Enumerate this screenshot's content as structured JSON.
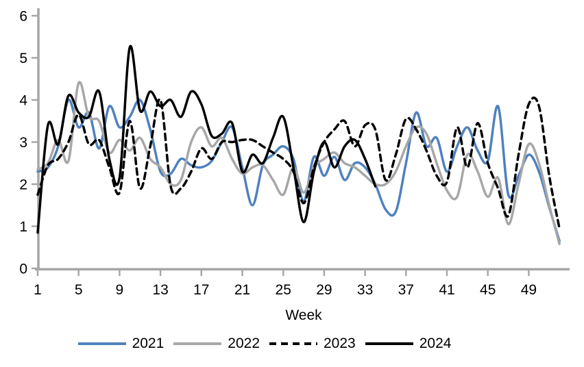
{
  "axis_color": "#a6a6a6",
  "chart_data": {
    "type": "line",
    "title": "",
    "xlabel": "Week",
    "ylabel": "",
    "x_start": 1,
    "x_step": 1,
    "xlim": [
      1,
      52
    ],
    "ylim": [
      0,
      6
    ],
    "x_ticks": [
      1,
      5,
      9,
      13,
      17,
      21,
      25,
      29,
      33,
      37,
      41,
      45,
      49
    ],
    "y_ticks": [
      0,
      1,
      2,
      3,
      4,
      5,
      6
    ],
    "grid": false,
    "legend_position": "bottom",
    "series": [
      {
        "name": "2021",
        "color": "#4f81bd",
        "style": "solid",
        "values": [
          2.3,
          2.4,
          2.9,
          4.0,
          3.35,
          3.7,
          2.85,
          3.85,
          3.35,
          3.6,
          4.0,
          3.3,
          2.3,
          2.25,
          2.6,
          2.45,
          2.4,
          2.55,
          3.0,
          3.35,
          2.4,
          1.5,
          2.45,
          2.7,
          2.9,
          2.6,
          1.6,
          2.65,
          2.2,
          2.65,
          2.1,
          2.5,
          2.4,
          2.0,
          1.4,
          1.35,
          2.5,
          3.7,
          2.9,
          3.1,
          2.3,
          2.9,
          3.35,
          2.8,
          2.55,
          3.85,
          1.75,
          2.2,
          2.7,
          2.3,
          1.45,
          0.65
        ]
      },
      {
        "name": "2022",
        "color": "#a7a7a7",
        "style": "solid",
        "values": [
          2.35,
          2.5,
          3.05,
          2.55,
          4.4,
          3.6,
          3.5,
          2.75,
          3.05,
          2.8,
          3.1,
          2.6,
          2.4,
          2.0,
          2.1,
          3.0,
          3.35,
          2.9,
          3.1,
          2.6,
          2.25,
          2.4,
          2.45,
          2.1,
          1.75,
          2.4,
          1.8,
          2.4,
          2.6,
          2.75,
          2.5,
          2.4,
          2.2,
          2.0,
          2.0,
          2.3,
          2.9,
          3.35,
          3.2,
          2.5,
          1.85,
          1.7,
          2.7,
          2.3,
          1.7,
          2.15,
          1.05,
          2.0,
          2.95,
          2.5,
          1.5,
          0.58
        ]
      },
      {
        "name": "2023",
        "color": "#000000",
        "style": "dashed",
        "values": [
          1.75,
          2.45,
          2.6,
          3.0,
          3.65,
          2.95,
          3.05,
          2.4,
          1.8,
          3.5,
          1.9,
          2.9,
          4.0,
          1.95,
          1.9,
          2.3,
          2.85,
          2.6,
          3.0,
          3.0,
          3.05,
          3.05,
          2.9,
          2.75,
          2.6,
          2.3,
          1.55,
          2.4,
          3.0,
          3.3,
          3.5,
          2.9,
          3.4,
          3.3,
          2.1,
          2.7,
          3.55,
          3.3,
          2.8,
          2.2,
          2.05,
          3.35,
          2.4,
          3.45,
          2.5,
          1.9,
          1.25,
          2.7,
          3.9,
          3.85,
          2.2,
          0.95
        ]
      },
      {
        "name": "2024",
        "color": "#000000",
        "style": "solid",
        "values": [
          0.85,
          3.4,
          2.95,
          4.1,
          3.7,
          3.6,
          4.2,
          2.6,
          2.15,
          5.25,
          3.75,
          4.2,
          3.85,
          4.0,
          3.6,
          4.2,
          3.9,
          3.15,
          3.2,
          3.45,
          2.3,
          2.7,
          2.5,
          3.1,
          3.6,
          2.4,
          1.1,
          2.3,
          3.0,
          2.4,
          2.9,
          3.05,
          2.6,
          1.95
        ]
      }
    ]
  }
}
